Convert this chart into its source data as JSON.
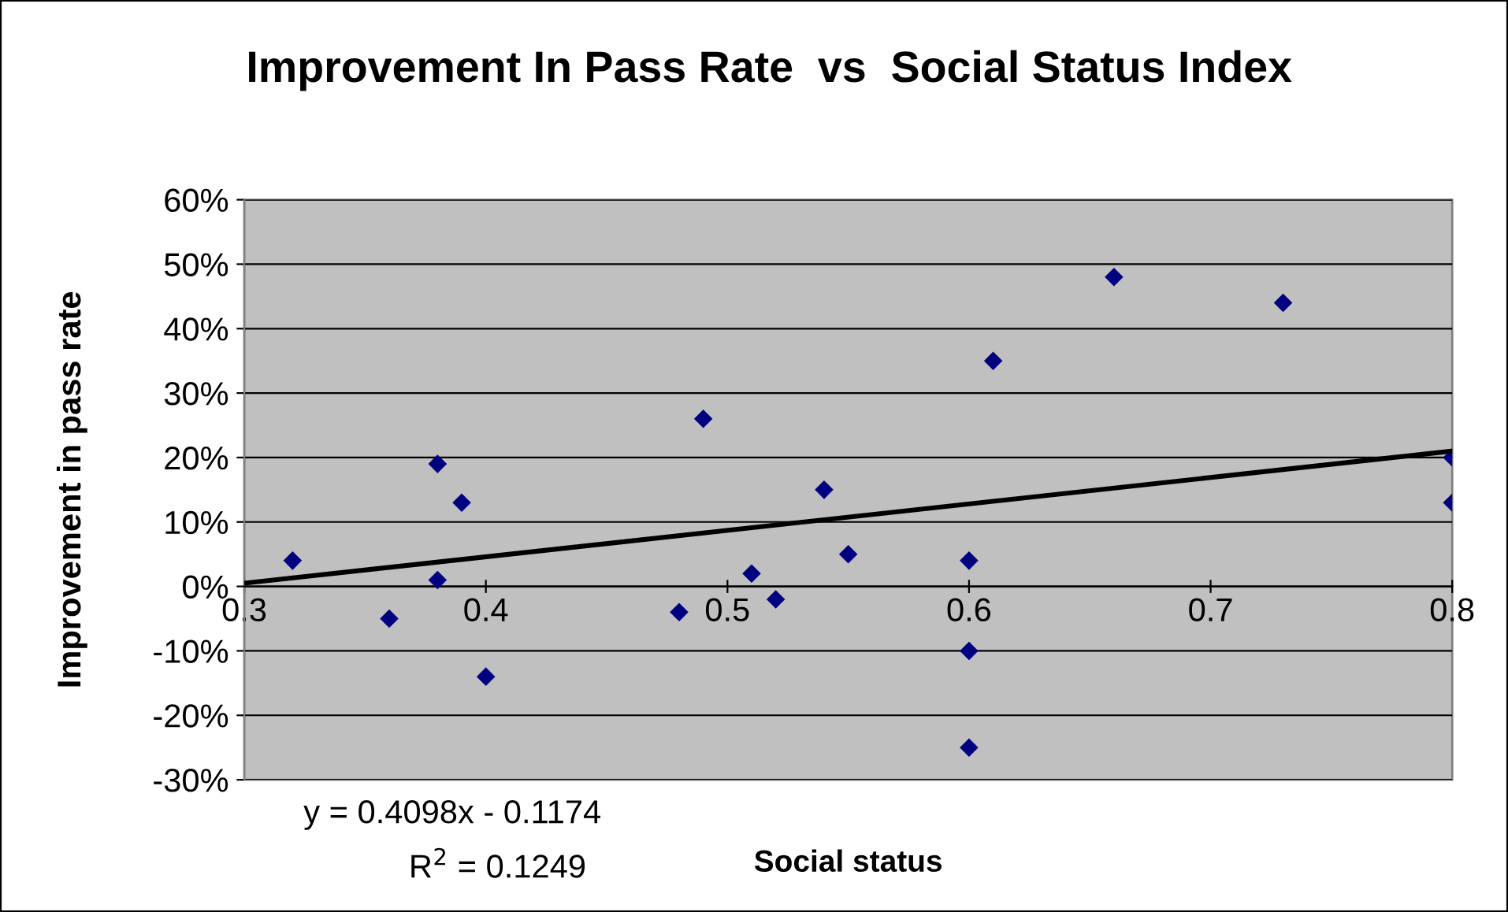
{
  "chart_data": {
    "type": "scatter",
    "title": "Improvement In Pass Rate  vs  Social Status Index",
    "xlabel": "Social status",
    "ylabel": "Improvement in pass rate",
    "series": [
      {
        "color": "#000080",
        "marker": "diamond",
        "x": [
          0.32,
          0.36,
          0.38,
          0.38,
          0.39,
          0.4,
          0.48,
          0.49,
          0.51,
          0.52,
          0.54,
          0.55,
          0.6,
          0.6,
          0.6,
          0.61,
          0.66,
          0.73,
          0.8,
          0.8
        ],
        "values": [
          4,
          -5,
          19,
          1,
          13,
          -14,
          -4,
          26,
          2,
          -2,
          15,
          5,
          4,
          -10,
          -25,
          35,
          48,
          44,
          20,
          13
        ]
      },
      {
        "type": "line",
        "color": "#000000",
        "line_style": "solid",
        "x": [
          0.3,
          0.8
        ],
        "values": [
          0.5,
          21
        ]
      }
    ],
    "xlim": [
      0.3,
      0.8
    ],
    "xticks": [
      0.3,
      0.4,
      0.5,
      0.6,
      0.7,
      0.8
    ],
    "ylim": [
      -30,
      60
    ],
    "yticks": [
      {
        "value": -30,
        "label": "-30%"
      },
      {
        "value": -20,
        "label": "-20%"
      },
      {
        "value": -10,
        "label": "-10%"
      },
      {
        "value": 0,
        "label": "0%"
      },
      {
        "value": 10,
        "label": "10%"
      },
      {
        "value": 20,
        "label": "20%"
      },
      {
        "value": 30,
        "label": "30%"
      },
      {
        "value": 40,
        "label": "40%"
      },
      {
        "value": 50,
        "label": "50%"
      },
      {
        "value": 60,
        "label": "60%"
      }
    ],
    "grid": "y",
    "annotations": [
      "y = 0.4098x - 0.1174",
      "R$^{2}$ = 0.1249"
    ]
  }
}
